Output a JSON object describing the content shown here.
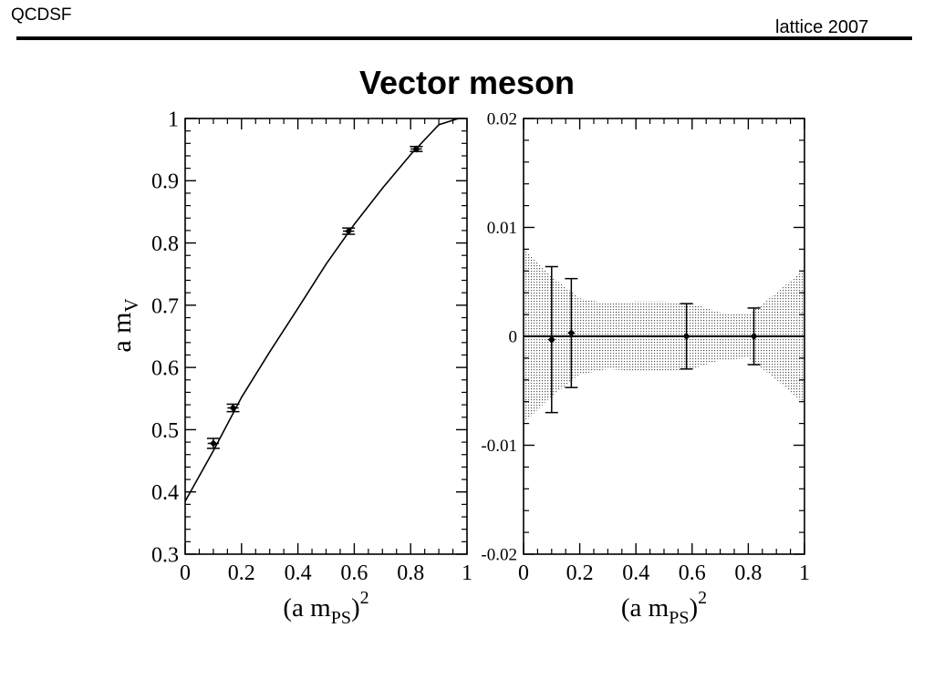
{
  "header": {
    "left": "QCDSF",
    "right": "lattice 2007"
  },
  "title": "Vector meson",
  "chart_data": [
    {
      "type": "scatter",
      "panel": "left",
      "xlabel_base": "(a m",
      "xlabel_sub": "PS",
      "xlabel_close": ")",
      "xlabel_sup": "2",
      "ylabel_base": "a m",
      "ylabel_sub": "V",
      "xlim": [
        0,
        1
      ],
      "ylim": [
        0.3,
        1.0
      ],
      "xticks": [
        0,
        0.2,
        0.4,
        0.6,
        0.8,
        1
      ],
      "xtick_labels": [
        "0",
        "0.2",
        "0.4",
        "0.6",
        "0.8",
        "1"
      ],
      "yticks": [
        0.3,
        0.4,
        0.5,
        0.6,
        0.7,
        0.8,
        0.9,
        1
      ],
      "ytick_labels": [
        "0.3",
        "0.4",
        "0.5",
        "0.6",
        "0.7",
        "0.8",
        "0.9",
        "1"
      ],
      "points": [
        {
          "x": 0.1,
          "y": 0.478,
          "xerr": 0.02,
          "yerr": 0.008
        },
        {
          "x": 0.17,
          "y": 0.535,
          "xerr": 0.02,
          "yerr": 0.006
        },
        {
          "x": 0.58,
          "y": 0.819,
          "xerr": 0.02,
          "yerr": 0.005
        },
        {
          "x": 0.82,
          "y": 0.951,
          "xerr": 0.02,
          "yerr": 0.004
        }
      ],
      "fit_curve": {
        "x": [
          0,
          0.1,
          0.2,
          0.3,
          0.4,
          0.5,
          0.6,
          0.7,
          0.8,
          0.9,
          0.97
        ],
        "y": [
          0.385,
          0.466,
          0.552,
          0.625,
          0.695,
          0.766,
          0.83,
          0.888,
          0.942,
          0.99,
          1.0
        ]
      }
    },
    {
      "type": "scatter",
      "panel": "right",
      "xlabel_base": "(a m",
      "xlabel_sub": "PS",
      "xlabel_close": ")",
      "xlabel_sup": "2",
      "xlim": [
        0,
        1
      ],
      "ylim": [
        -0.02,
        0.02
      ],
      "xticks": [
        0,
        0.2,
        0.4,
        0.6,
        0.8,
        1
      ],
      "xtick_labels": [
        "0",
        "0.2",
        "0.4",
        "0.6",
        "0.8",
        "1"
      ],
      "yticks": [
        -0.02,
        -0.01,
        0,
        0.01,
        0.02
      ],
      "ytick_labels": [
        "-0.02",
        "-0.01",
        "0",
        "0.01",
        "0.02"
      ],
      "points": [
        {
          "x": 0.1,
          "y": -0.0003,
          "yerr": 0.0067
        },
        {
          "x": 0.17,
          "y": 0.0003,
          "yerr": 0.005
        },
        {
          "x": 0.58,
          "y": 0.0,
          "yerr": 0.003
        },
        {
          "x": 0.82,
          "y": 0.0,
          "yerr": 0.0026
        }
      ],
      "zero_line": 0,
      "error_band": {
        "x": [
          0,
          0.1,
          0.2,
          0.3,
          0.4,
          0.5,
          0.6,
          0.7,
          0.8,
          0.9,
          1.0
        ],
        "upper": [
          0.008,
          0.0055,
          0.0035,
          0.003,
          0.0032,
          0.0032,
          0.003,
          0.0022,
          0.002,
          0.004,
          0.0062
        ],
        "lower": [
          -0.008,
          -0.0055,
          -0.0035,
          -0.003,
          -0.0032,
          -0.0032,
          -0.003,
          -0.0022,
          -0.002,
          -0.004,
          -0.0062
        ]
      }
    }
  ]
}
